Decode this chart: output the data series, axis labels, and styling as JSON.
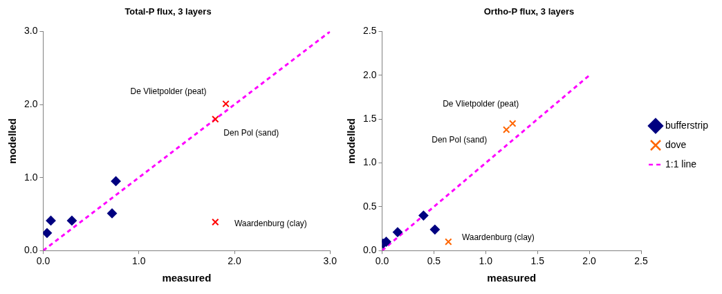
{
  "chart_data": [
    {
      "type": "scatter",
      "title": "Total-P flux, 3 layers",
      "xlabel": "measured",
      "ylabel": "modelled",
      "xlim": [
        0,
        3
      ],
      "ylim": [
        0,
        3
      ],
      "xticks": [
        {
          "value": 0,
          "label": "0.0"
        },
        {
          "value": 1,
          "label": "1.0"
        },
        {
          "value": 2,
          "label": "2.0"
        },
        {
          "value": 3,
          "label": "3.0"
        }
      ],
      "yticks": [
        {
          "value": 0,
          "label": "0.0"
        },
        {
          "value": 1,
          "label": "1.0"
        },
        {
          "value": 2,
          "label": "2.0"
        },
        {
          "value": 3,
          "label": "3.0"
        }
      ],
      "grid": false,
      "legend": false,
      "series": [
        {
          "type": "scatter",
          "marker": "diamond",
          "color": "#000080",
          "x": [
            0.04,
            0.08,
            0.3,
            0.72,
            0.76
          ],
          "values": [
            0.24,
            0.41,
            0.41,
            0.51,
            0.95
          ]
        },
        {
          "type": "scatter",
          "marker": "cross",
          "color": "#ff0000",
          "x": [
            1.8,
            1.91,
            1.8
          ],
          "values": [
            1.8,
            2.01,
            0.39
          ]
        },
        {
          "type": "line",
          "marker": "none",
          "line_style": "dashed",
          "color": "#ff00ff",
          "x": [
            0,
            3
          ],
          "values": [
            0,
            3
          ]
        }
      ],
      "annotations": [
        {
          "text": "De Vlietpolder (peat)",
          "x": 1.91,
          "y": 2.01
        },
        {
          "text": "Den Pol (sand)",
          "x": 1.8,
          "y": 1.8
        },
        {
          "text": "Waardenburg (clay)",
          "x": 1.8,
          "y": 0.39
        }
      ]
    },
    {
      "type": "scatter",
      "title": "Ortho-P flux, 3 layers",
      "xlabel": "measured",
      "ylabel": "modelled",
      "xlim": [
        0,
        2.5
      ],
      "ylim": [
        0,
        2.5
      ],
      "xticks": [
        {
          "value": 0,
          "label": "0.0"
        },
        {
          "value": 0.5,
          "label": "0.5"
        },
        {
          "value": 1,
          "label": "1.0"
        },
        {
          "value": 1.5,
          "label": "1.5"
        },
        {
          "value": 2,
          "label": "2.0"
        },
        {
          "value": 2.5,
          "label": "2.5"
        }
      ],
      "yticks": [
        {
          "value": 0,
          "label": "0.0"
        },
        {
          "value": 0.5,
          "label": "0.5"
        },
        {
          "value": 1,
          "label": "1.0"
        },
        {
          "value": 1.5,
          "label": "1.5"
        },
        {
          "value": 2,
          "label": "2.0"
        },
        {
          "value": 2.5,
          "label": "2.5"
        }
      ],
      "grid": false,
      "legend": "right",
      "series": [
        {
          "type": "scatter",
          "name": "bufferstrip",
          "marker": "diamond",
          "color": "#000080",
          "x": [
            0.01,
            0.04,
            0.15,
            0.4,
            0.51
          ],
          "values": [
            0.08,
            0.1,
            0.21,
            0.4,
            0.24
          ]
        },
        {
          "type": "scatter",
          "name": "dove",
          "marker": "cross",
          "color": "#ff6600",
          "x": [
            0.64,
            1.2,
            1.26
          ],
          "values": [
            0.1,
            1.38,
            1.45
          ]
        },
        {
          "type": "line",
          "name": "1:1 line",
          "marker": "none",
          "line_style": "dashed",
          "color": "#ff00ff",
          "x": [
            0,
            2
          ],
          "values": [
            0,
            2
          ]
        }
      ],
      "annotations": [
        {
          "text": "De Vlietpolder (peat)",
          "x": 1.26,
          "y": 1.45
        },
        {
          "text": "Den Pol (sand)",
          "x": 1.2,
          "y": 1.38
        },
        {
          "text": "Waardenburg (clay)",
          "x": 0.64,
          "y": 0.1
        }
      ]
    }
  ]
}
